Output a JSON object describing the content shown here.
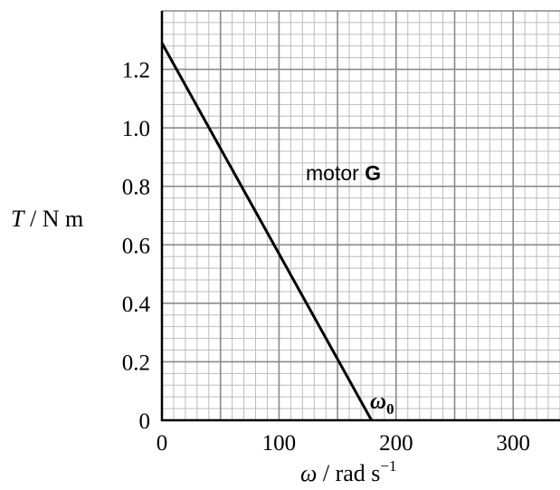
{
  "chart_data": {
    "type": "line",
    "xlim": [
      0,
      340
    ],
    "ylim": [
      0,
      1.4
    ],
    "x_ticks": [
      0,
      100,
      200,
      300
    ],
    "y_ticks": [
      0,
      0.2,
      0.4,
      0.6,
      0.8,
      1.0,
      1.2
    ],
    "x_tick_labels": [
      "0",
      "100",
      "200",
      "300"
    ],
    "y_tick_labels": [
      "0",
      "0.2",
      "0.4",
      "0.6",
      "0.8",
      "1.0",
      "1.2"
    ],
    "grid": true,
    "grid_minor_x": 10,
    "grid_minor_y": 0.04,
    "series": [
      {
        "x": [
          0,
          179
        ],
        "y": [
          1.29,
          0
        ]
      }
    ],
    "ylabel": {
      "italic": "T",
      "rest": " / N m"
    },
    "xlabel": {
      "italic": "ω",
      "rest": " / rad s",
      "sup": "−1"
    },
    "annotations": {
      "line_label_prefix": "motor ",
      "line_label_bold": "G",
      "intercept_symbol": "ω",
      "intercept_sub": "0"
    },
    "colors": {
      "line": "#000000",
      "grid_major": "#8a8a8a",
      "grid_minor": "#bdbdbd"
    }
  }
}
